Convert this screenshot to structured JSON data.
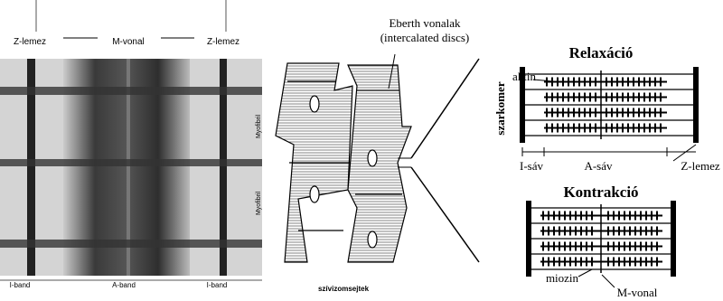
{
  "micrograph": {
    "top_labels": [
      "Z-lemez",
      "M-vonal",
      "Z-lemez"
    ],
    "side_labels": [
      "Myofibril",
      "Myofibril"
    ],
    "bottom_labels": [
      "I-band",
      "A-band",
      "I-band"
    ]
  },
  "cells": {
    "caption": "szívizomsejtek",
    "eberth_title": "Eberth vonalak",
    "eberth_subtitle": "(intercalated discs)"
  },
  "relaxation": {
    "title": "Relaxáció",
    "actin": "aktin",
    "sarcomere": "szarkomer",
    "i_band": "I-sáv",
    "a_band": "A-sáv",
    "z_disc": "Z-lemez"
  },
  "contraction": {
    "title": "Kontrakció",
    "myosin": "miozin",
    "m_line": "M-vonal"
  }
}
